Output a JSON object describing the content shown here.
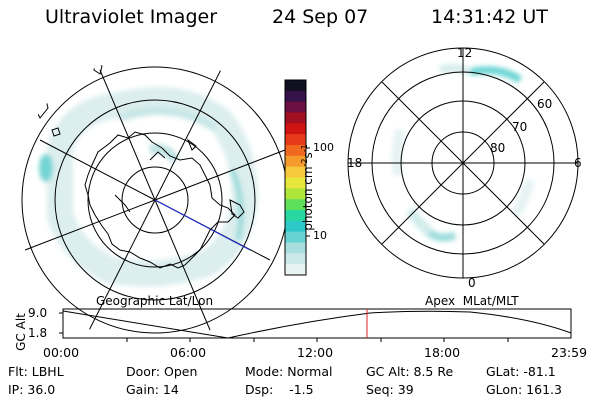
{
  "header": {
    "instrument": "Ultraviolet Imager",
    "date": "24 Sep 07",
    "time": "14:31:42 UT"
  },
  "colorbar": {
    "label_main": "photon cm",
    "label_sup1": "-2",
    "label_s": "s",
    "label_sup2": "-1",
    "ticks": [
      "100",
      "10"
    ],
    "colors": [
      "#e7f4f4",
      "#cbe9e9",
      "#a9dede",
      "#67d3d3",
      "#2dc9c9",
      "#27d9a0",
      "#5ee05a",
      "#b0e53a",
      "#e6e63b",
      "#f5c93b",
      "#f59b2c",
      "#f0691f",
      "#e83a1a",
      "#d01414",
      "#a31020",
      "#6b1040",
      "#36124a",
      "#101020"
    ]
  },
  "left_map": {
    "title": "Geographic Lat/Lon"
  },
  "right_map": {
    "title": "Apex  MLat/MLT",
    "mlt_labels": {
      "top": "12",
      "bottom": "0",
      "left": "18",
      "right": "6"
    },
    "lat_labels": [
      "60",
      "70",
      "80"
    ]
  },
  "altitude_plot": {
    "ylabel": "GC Alt",
    "y_ticks": [
      "9.0",
      "1.8"
    ],
    "x_ticks": [
      "00:00",
      "06:00",
      "12:00",
      "18:00",
      "23:59"
    ],
    "marker_color": "#e02020"
  },
  "info": {
    "flt": "Flt: LBHL",
    "ip": "IP: 36.0",
    "door": "Door: Open",
    "gain": "Gain: 14",
    "mode": "Mode: Normal",
    "dsp": "Dsp:    -1.5",
    "gc_alt": "GC Alt: 8.5 Re",
    "seq": "Seq: 39",
    "glat": "GLat: -81.1",
    "glon": "GLon: 161.3"
  }
}
